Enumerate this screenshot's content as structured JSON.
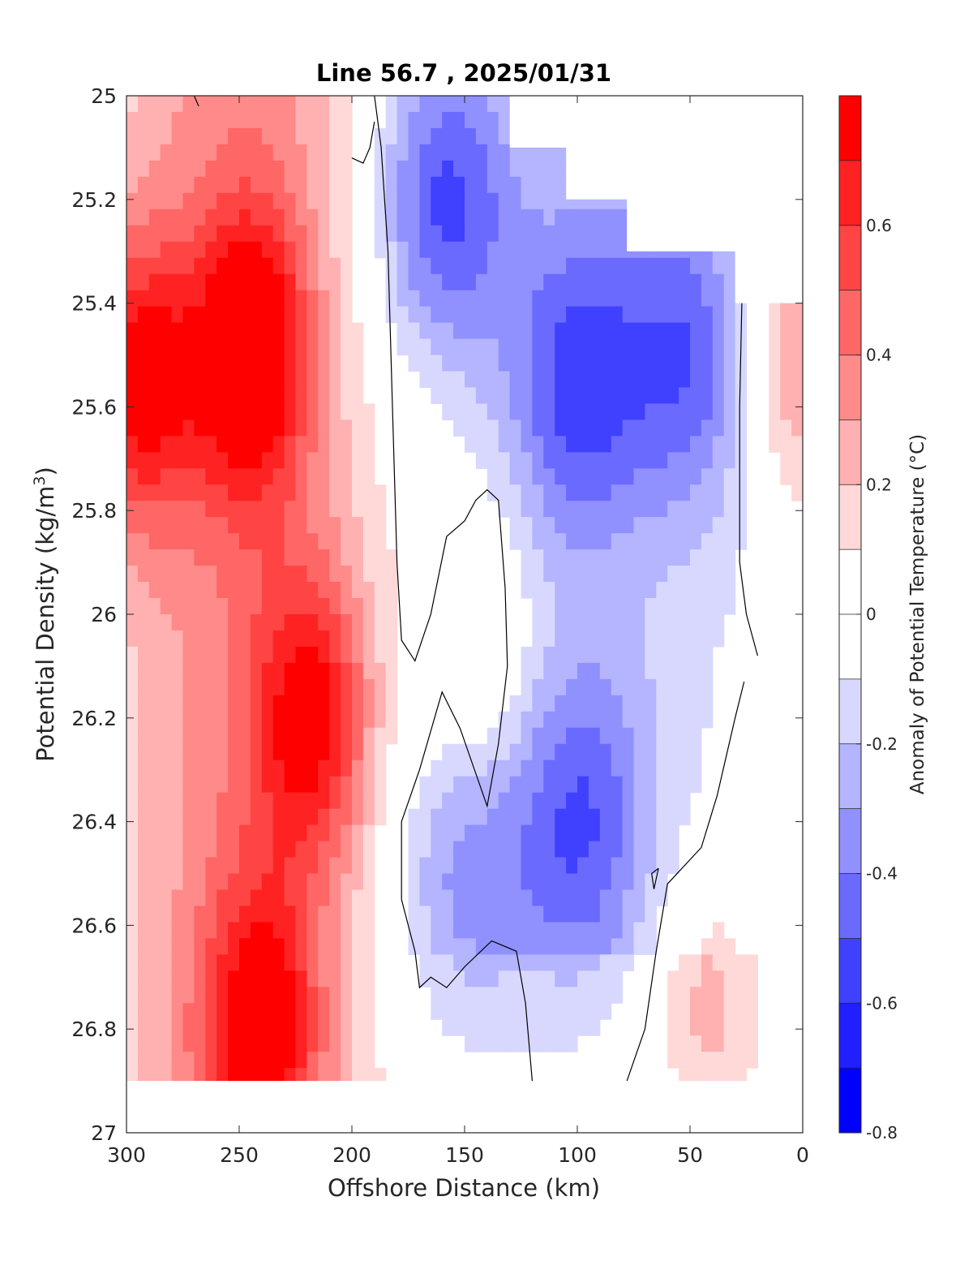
{
  "chart_data": {
    "type": "heatmap",
    "title": "Line 56.7 , 2025/01/31",
    "xlabel": "Offshore Distance (km)",
    "ylabel_parts": [
      "Potential Density (kg/m",
      "3",
      ")"
    ],
    "colorbar_label": "Anomaly of Potential Temperature (°C)",
    "x_axis": {
      "range": [
        300,
        0
      ],
      "reversed": true,
      "ticks": [
        300,
        250,
        200,
        150,
        100,
        50,
        0
      ]
    },
    "y_axis": {
      "range": [
        25,
        27
      ],
      "reversed": true,
      "ticks": [
        25,
        25.2,
        25.4,
        25.6,
        25.8,
        26,
        26.2,
        26.4,
        26.6,
        26.8,
        27
      ],
      "tick_labels": [
        "25",
        "25.2",
        "25.4",
        "25.6",
        "25.8",
        "26",
        "26.2",
        "26.4",
        "26.6",
        "26.8",
        "27"
      ]
    },
    "colorbar": {
      "range": [
        -0.8,
        0.8
      ],
      "ticks": [
        -0.8,
        -0.6,
        -0.4,
        -0.2,
        0,
        0.2,
        0.4,
        0.6
      ],
      "tick_labels": [
        "-0.8",
        "-0.6",
        "-0.4",
        "-0.2",
        "0",
        "0.2",
        "0.4",
        "0.6"
      ],
      "colors": [
        "#0000ff",
        "#2020ff",
        "#4040ff",
        "#6a6aff",
        "#9090ff",
        "#b4b4ff",
        "#d8d8ff",
        "#ffffff",
        "#ffffff",
        "#ffd8d8",
        "#ffb0b0",
        "#ff8a8a",
        "#ff6666",
        "#ff4444",
        "#ff2222",
        "#ff0000"
      ]
    },
    "grid": false,
    "data_extent": {
      "density_max": 26.9,
      "upper_boundary": [
        {
          "x": 300,
          "density": 25.0
        },
        {
          "x": 130,
          "density": 25.0
        },
        {
          "x": 130,
          "density": 25.1
        },
        {
          "x": 105,
          "density": 25.1
        },
        {
          "x": 105,
          "density": 25.2
        },
        {
          "x": 78,
          "density": 25.2
        },
        {
          "x": 78,
          "density": 25.3
        },
        {
          "x": 30,
          "density": 25.3
        },
        {
          "x": 30,
          "density": 25.4
        },
        {
          "x": 0,
          "density": 25.4
        }
      ]
    },
    "features": [
      {
        "name": "warm core",
        "x": 245,
        "density": 25.5,
        "value": 0.75
      },
      {
        "name": "warm core",
        "x": 295,
        "density": 25.55,
        "value": 0.7
      },
      {
        "name": "warm core",
        "x": 240,
        "density": 26.8,
        "value": 0.65
      },
      {
        "name": "warm core",
        "x": 218,
        "density": 26.2,
        "value": 0.65
      },
      {
        "name": "cold core",
        "x": 160,
        "density": 25.2,
        "value": -0.6
      },
      {
        "name": "cold core",
        "x": 100,
        "density": 25.55,
        "value": -0.5
      },
      {
        "name": "cold core",
        "x": 100,
        "density": 26.4,
        "value": -0.45
      },
      {
        "name": "cold core",
        "x": 152,
        "density": 26.5,
        "value": -0.35
      },
      {
        "name": "cold core",
        "x": 48,
        "density": 25.5,
        "value": -0.45
      },
      {
        "name": "warm patch",
        "x": 140,
        "density": 26.1,
        "value": 0.2
      },
      {
        "name": "warm patch",
        "x": 42,
        "density": 26.75,
        "value": 0.3
      },
      {
        "name": "warm patch",
        "x": 5,
        "density": 25.5,
        "value": 0.45
      }
    ]
  }
}
